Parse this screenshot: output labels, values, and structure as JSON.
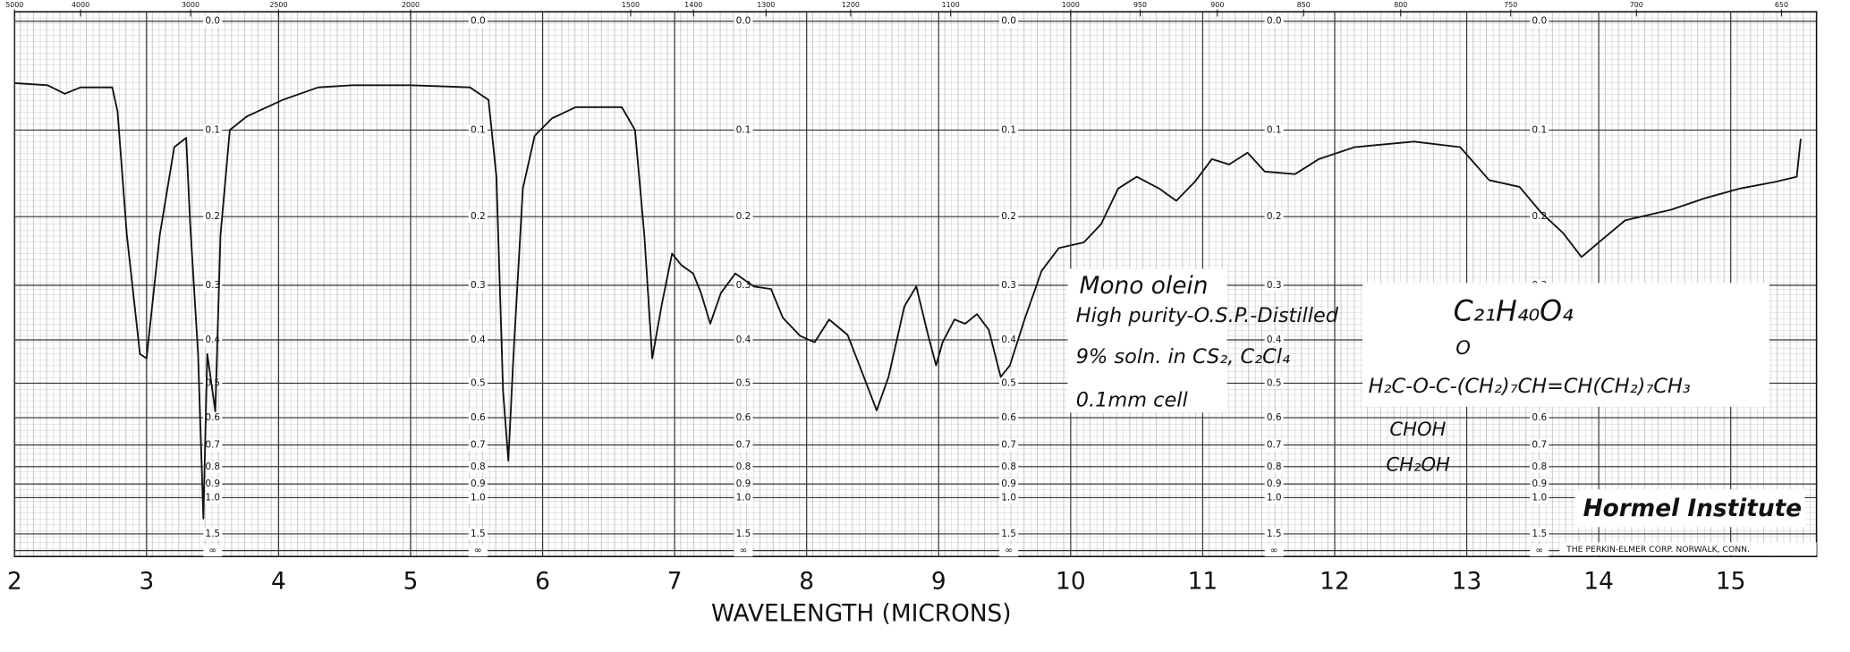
{
  "chart_data": {
    "type": "line",
    "xlabel": "WAVELENGTH (MICRONS)",
    "xlim": [
      2,
      15.65
    ],
    "xticks": [
      2,
      3,
      4,
      5,
      6,
      7,
      8,
      9,
      10,
      11,
      12,
      13,
      14,
      15
    ],
    "x2ticks": [
      5000,
      4000,
      3000,
      2500,
      2000,
      1500,
      1400,
      1300,
      1200,
      1100,
      1000,
      950,
      900,
      850,
      800,
      750,
      700,
      650
    ],
    "ylim": [
      0,
      null
    ],
    "yscale": "absorbance",
    "yticks": [
      {
        "value": 0,
        "label": "0.0"
      },
      0.1,
      0.2,
      0.3,
      0.4,
      0.5,
      0.6,
      0.7,
      0.8,
      0.9,
      {
        "value": 1,
        "label": "1.0"
      },
      1.5,
      {
        "value": null,
        "label": "∞"
      }
    ],
    "grid": true,
    "color": "#111111",
    "x": [
      2.0,
      2.25,
      2.38,
      2.5,
      2.74,
      2.78,
      2.85,
      2.95,
      3.0,
      3.1,
      3.21,
      3.3,
      3.33,
      3.39,
      3.43,
      3.46,
      3.52,
      3.56,
      3.63,
      3.76,
      4.03,
      4.3,
      4.56,
      5.0,
      5.45,
      5.59,
      5.65,
      5.7,
      5.74,
      5.78,
      5.85,
      5.94,
      6.07,
      6.25,
      6.6,
      6.7,
      6.77,
      6.83,
      6.9,
      6.98,
      7.05,
      7.14,
      7.2,
      7.27,
      7.35,
      7.46,
      7.6,
      7.73,
      7.82,
      7.95,
      8.06,
      8.17,
      8.31,
      8.4,
      8.53,
      8.62,
      8.74,
      8.83,
      8.92,
      8.98,
      9.03,
      9.12,
      9.2,
      9.29,
      9.38,
      9.47,
      9.54,
      9.65,
      9.78,
      9.91,
      10.1,
      10.23,
      10.36,
      10.5,
      10.67,
      10.8,
      10.94,
      11.07,
      11.2,
      11.34,
      11.47,
      11.7,
      11.88,
      12.15,
      12.6,
      12.95,
      13.17,
      13.4,
      13.56,
      13.73,
      13.87,
      14.0,
      14.2,
      14.55,
      14.8,
      15.07,
      15.34,
      15.5,
      15.53
    ],
    "values": [
      0.054,
      0.056,
      0.064,
      0.058,
      0.058,
      0.081,
      0.225,
      0.43,
      0.44,
      0.225,
      0.118,
      0.108,
      0.21,
      0.43,
      1.22,
      0.43,
      0.58,
      0.225,
      0.1,
      0.086,
      0.07,
      0.058,
      0.056,
      0.056,
      0.058,
      0.07,
      0.151,
      0.52,
      0.77,
      0.43,
      0.165,
      0.106,
      0.088,
      0.077,
      0.077,
      0.1,
      0.225,
      0.44,
      0.336,
      0.251,
      0.268,
      0.281,
      0.313,
      0.368,
      0.313,
      0.281,
      0.302,
      0.306,
      0.357,
      0.392,
      0.405,
      0.36,
      0.39,
      0.456,
      0.577,
      0.484,
      0.336,
      0.302,
      0.39,
      0.456,
      0.405,
      0.36,
      0.368,
      0.35,
      0.38,
      0.484,
      0.456,
      0.36,
      0.277,
      0.243,
      0.235,
      0.21,
      0.165,
      0.151,
      0.165,
      0.18,
      0.157,
      0.131,
      0.137,
      0.124,
      0.145,
      0.148,
      0.131,
      0.118,
      0.112,
      0.118,
      0.155,
      0.163,
      0.194,
      0.222,
      0.256,
      0.235,
      0.205,
      0.191,
      0.177,
      0.165,
      0.157,
      0.151,
      0.109
    ],
    "annotations": [
      "Mono olein",
      "High purity-O.S.P.-Distilled",
      "9% soln. in CS₂, C₂Cl₄",
      "0.1mm cell",
      "C₂₁H₄₀O₄",
      "O",
      "H₂C-O-C-(CH₂)₇CH=CH(CH₂)₇CH₃",
      "CHOH",
      "CH₂OH",
      "Hormel Institute",
      "THE PERKIN-ELMER CORP. NORWALK, CONN."
    ]
  }
}
